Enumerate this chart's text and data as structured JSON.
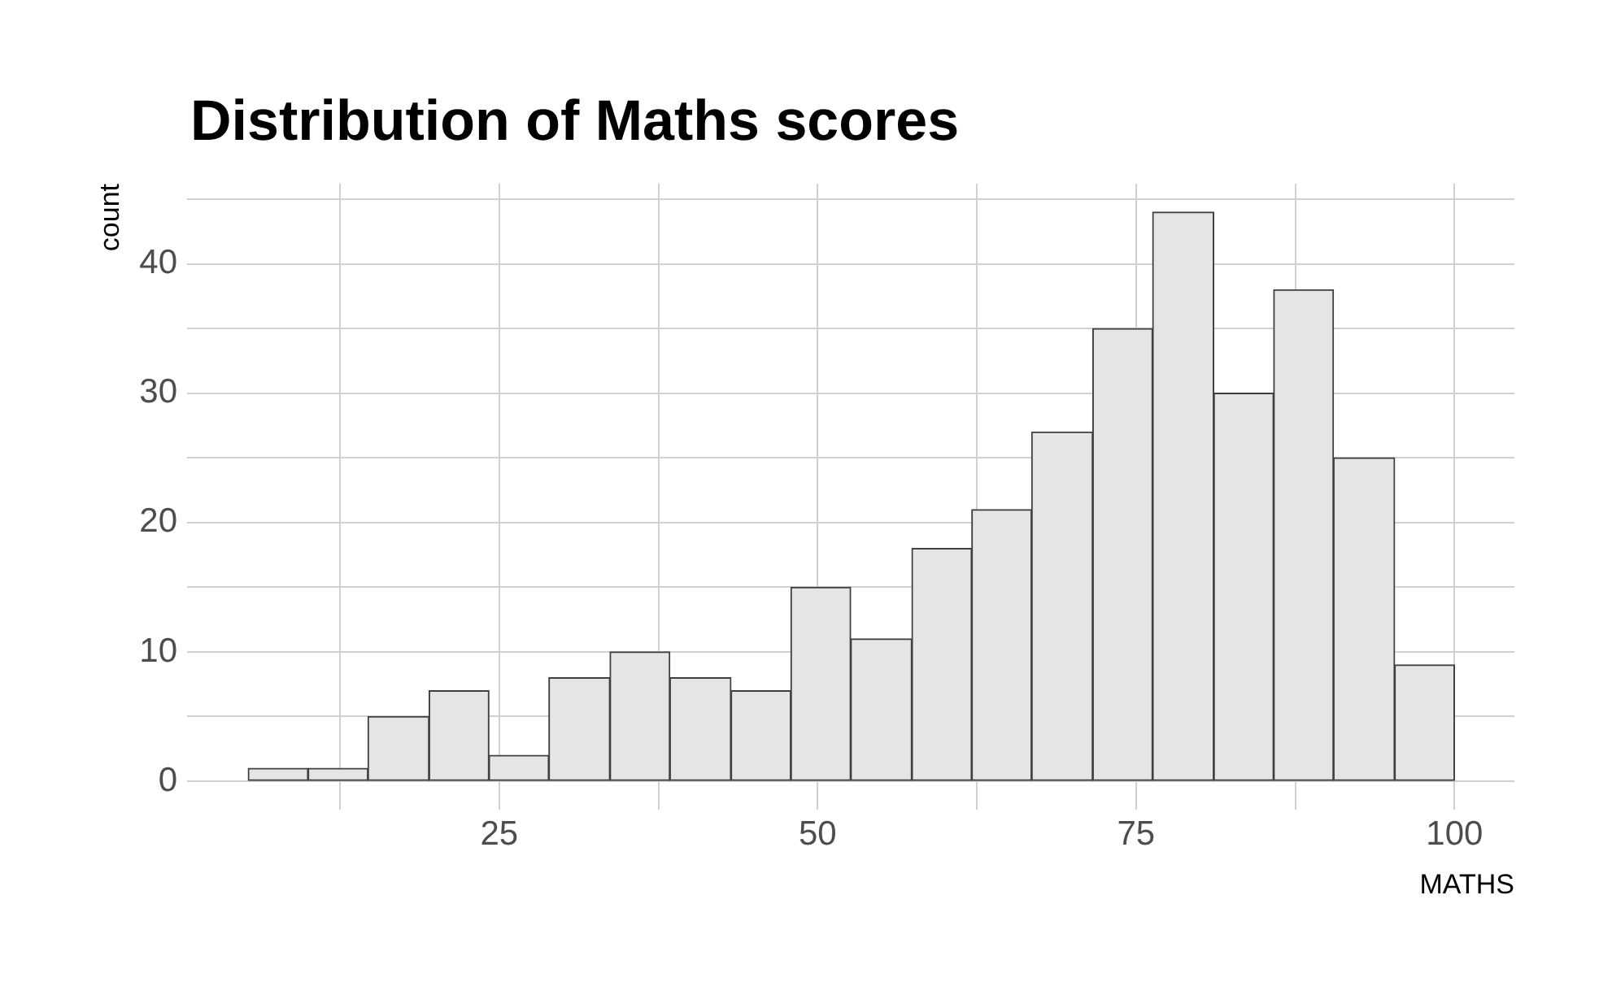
{
  "chart_data": {
    "type": "histogram",
    "title": "Distribution of Maths scores",
    "xlabel": "MATHS",
    "ylabel": "count",
    "bins": [
      5.3,
      10.0,
      14.7,
      19.5,
      24.2,
      28.9,
      33.7,
      38.4,
      43.2,
      47.9,
      52.6,
      57.4,
      62.1,
      66.8,
      71.6,
      76.3,
      81.1,
      85.8,
      90.5,
      95.3,
      100.0
    ],
    "values": [
      1,
      1,
      5,
      7,
      2,
      8,
      10,
      8,
      7,
      15,
      11,
      18,
      21,
      27,
      35,
      44,
      30,
      38,
      25,
      9
    ],
    "color": "#e5e5e5",
    "xlim": [
      0.5,
      104.7
    ],
    "ylim": [
      -2.2,
      46.2
    ],
    "xticks": [
      {
        "value": 12.5,
        "label": null
      },
      25,
      {
        "value": 37.5,
        "label": null
      },
      50,
      {
        "value": 62.5,
        "label": null
      },
      75,
      {
        "value": 87.5,
        "label": null
      },
      100
    ],
    "yticks": [
      0,
      {
        "value": 5,
        "label": null
      },
      10,
      {
        "value": 15,
        "label": null
      },
      20,
      {
        "value": 25,
        "label": null
      },
      30,
      {
        "value": 35,
        "label": null
      },
      40,
      {
        "value": 45,
        "label": null
      }
    ],
    "grid": true
  }
}
